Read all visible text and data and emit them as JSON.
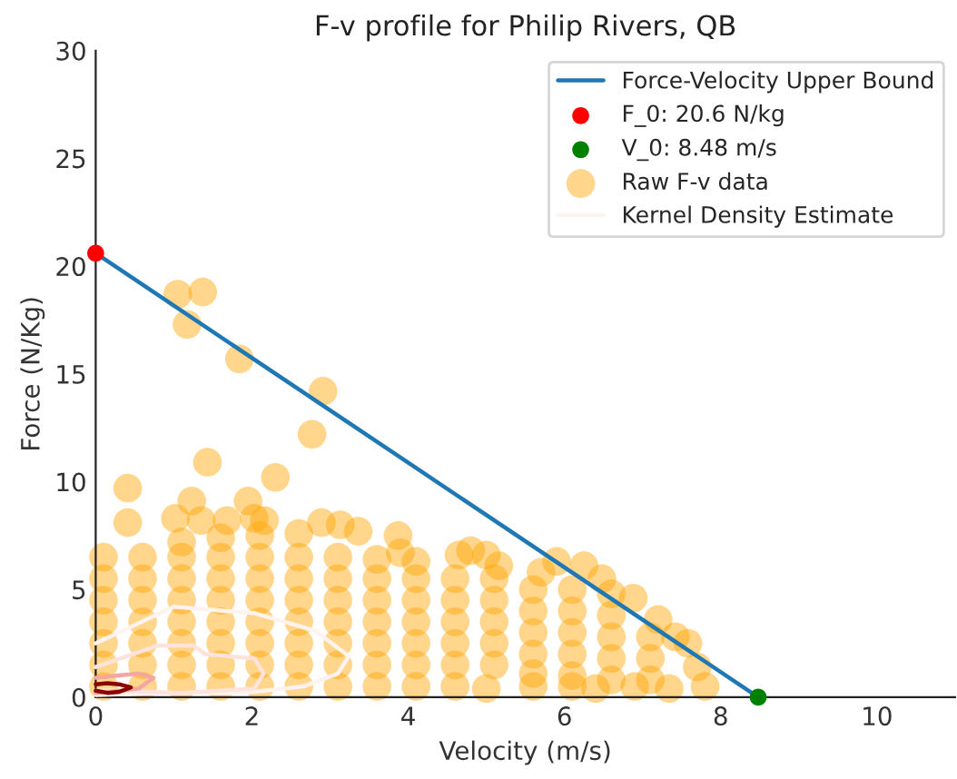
{
  "chart_data": {
    "type": "scatter",
    "title": "F-v profile for Philip Rivers, QB",
    "xlabel": "Velocity (m/s)",
    "ylabel": "Force (N/Kg)",
    "xlim": [
      0,
      11
    ],
    "xticks": [
      0,
      2,
      4,
      6,
      8,
      10
    ],
    "ylim": [
      0,
      30
    ],
    "yticks": [
      0,
      5,
      10,
      15,
      20,
      25,
      30
    ],
    "grid": false,
    "legend": "top right",
    "series": [
      {
        "type": "line",
        "name": "Force-Velocity Upper Bound",
        "color": "#1f77b4",
        "x": [
          0,
          8.48
        ],
        "values": [
          20.6,
          0
        ]
      },
      {
        "type": "scatter",
        "name": "F_0: 20.6 N/kg",
        "color": "#ff0000",
        "marker": "circle",
        "x": [
          0
        ],
        "values": [
          20.6
        ]
      },
      {
        "type": "scatter",
        "name": "V_0: 8.48 m/s",
        "color": "#008000",
        "marker": "circle",
        "x": [
          8.48
        ],
        "values": [
          0
        ]
      },
      {
        "type": "scatter",
        "name": "Raw F-v data",
        "color": "#ffa500",
        "marker": "circle",
        "x": [
          1.05,
          1.37,
          1.17,
          1.84,
          2.91,
          2.77,
          1.43,
          2.3,
          0.41,
          1.23,
          1.95,
          0.41,
          1.02,
          1.35,
          1.68,
          2.03,
          2.16,
          2.89,
          3.13,
          3.36,
          3.87,
          3.9,
          4.1,
          4.65,
          4.8,
          5.0,
          5.16,
          5.7,
          5.9,
          6.25,
          6.48,
          6.88,
          7.2,
          7.42,
          7.58,
          7.7,
          7.8,
          7.34,
          6.9,
          6.4,
          6.1,
          5.6,
          5.0,
          0.1,
          0.1,
          0.1,
          0.1,
          0.1,
          0.1,
          0.1,
          0.6,
          0.6,
          0.6,
          0.6,
          0.6,
          0.6,
          0.6,
          1.1,
          1.1,
          1.1,
          1.1,
          1.1,
          1.1,
          1.1,
          1.1,
          1.6,
          1.6,
          1.6,
          1.6,
          1.6,
          1.6,
          1.6,
          1.6,
          2.1,
          2.1,
          2.1,
          2.1,
          2.1,
          2.1,
          2.1,
          2.1,
          2.6,
          2.6,
          2.6,
          2.6,
          2.6,
          2.6,
          2.6,
          2.6,
          3.1,
          3.1,
          3.1,
          3.1,
          3.1,
          3.1,
          3.1,
          3.6,
          3.6,
          3.6,
          3.6,
          3.6,
          3.6,
          3.6,
          4.1,
          4.1,
          4.1,
          4.1,
          4.1,
          4.1,
          4.6,
          4.6,
          4.6,
          4.6,
          4.6,
          4.6,
          5.1,
          5.1,
          5.1,
          5.1,
          5.1,
          5.6,
          5.6,
          5.6,
          5.6,
          5.6,
          6.1,
          6.1,
          6.1,
          6.1,
          6.1,
          6.6,
          6.6,
          6.6,
          6.6,
          6.6,
          7.1,
          7.1,
          7.1
        ],
        "values": [
          18.7,
          18.8,
          17.3,
          15.7,
          14.2,
          12.2,
          10.9,
          10.2,
          9.7,
          9.1,
          9.1,
          8.1,
          8.3,
          8.2,
          8.2,
          8.3,
          8.2,
          8.1,
          8.0,
          7.7,
          7.5,
          6.7,
          6.3,
          6.6,
          6.8,
          6.6,
          6.1,
          5.8,
          6.3,
          6.1,
          5.5,
          4.6,
          3.6,
          2.8,
          2.5,
          1.4,
          0.5,
          0.4,
          0.5,
          0.4,
          0.5,
          1.1,
          0.4,
          0.5,
          1.5,
          2.5,
          3.5,
          4.5,
          5.5,
          6.5,
          0.5,
          1.5,
          2.5,
          3.5,
          4.5,
          5.5,
          6.5,
          0.5,
          1.5,
          2.5,
          3.5,
          4.5,
          5.5,
          6.5,
          7.2,
          0.5,
          1.5,
          2.5,
          3.5,
          4.5,
          5.5,
          6.5,
          7.4,
          0.5,
          1.5,
          2.5,
          3.5,
          4.5,
          5.5,
          6.5,
          7.5,
          0.5,
          1.5,
          2.5,
          3.5,
          4.5,
          5.5,
          6.5,
          7.6,
          0.5,
          1.5,
          2.5,
          3.5,
          4.5,
          5.5,
          6.5,
          0.5,
          1.5,
          2.5,
          3.5,
          4.5,
          5.5,
          6.4,
          0.5,
          1.5,
          2.5,
          3.5,
          4.5,
          5.5,
          0.5,
          1.5,
          2.5,
          3.5,
          4.5,
          5.5,
          1.5,
          2.5,
          3.5,
          4.5,
          5.5,
          0.5,
          2.0,
          3.0,
          4.0,
          5.0,
          1.0,
          2.0,
          3.0,
          4.0,
          5.0,
          0.8,
          1.8,
          2.8,
          3.8,
          4.8,
          0.8,
          1.8,
          2.8
        ]
      },
      {
        "type": "line",
        "name": "Kernel Density Estimate",
        "color": "#fff3ef",
        "x": [
          0,
          1.0,
          2.03,
          2.8,
          3.24,
          3.1,
          2.66,
          1.9,
          0.8,
          0
        ],
        "values": [
          2.5,
          4.2,
          3.9,
          3.1,
          1.9,
          1.1,
          0.5,
          0.2,
          0.2,
          0.1
        ]
      },
      {
        "type": "line",
        "color": "#fde3dc",
        "x": [
          0,
          0.8,
          1.25,
          1.4,
          2.03,
          2.15,
          2.03,
          1.1,
          0.3,
          0
        ],
        "values": [
          1.4,
          2.4,
          2.4,
          2.0,
          1.8,
          1.1,
          0.4,
          0.2,
          0.3,
          0.3
        ]
      },
      {
        "type": "line",
        "color": "#f4a6a0",
        "x": [
          0,
          0.55,
          0.74,
          0.55,
          0.04,
          0
        ],
        "values": [
          0.9,
          1.1,
          0.9,
          0.4,
          0.2,
          0.2
        ]
      },
      {
        "type": "line",
        "color": "#8b0000",
        "x": [
          0,
          0.15,
          0.3,
          0.45,
          0.3,
          0.15,
          0
        ],
        "values": [
          0.6,
          0.65,
          0.6,
          0.45,
          0.25,
          0.2,
          0.3
        ]
      }
    ]
  }
}
